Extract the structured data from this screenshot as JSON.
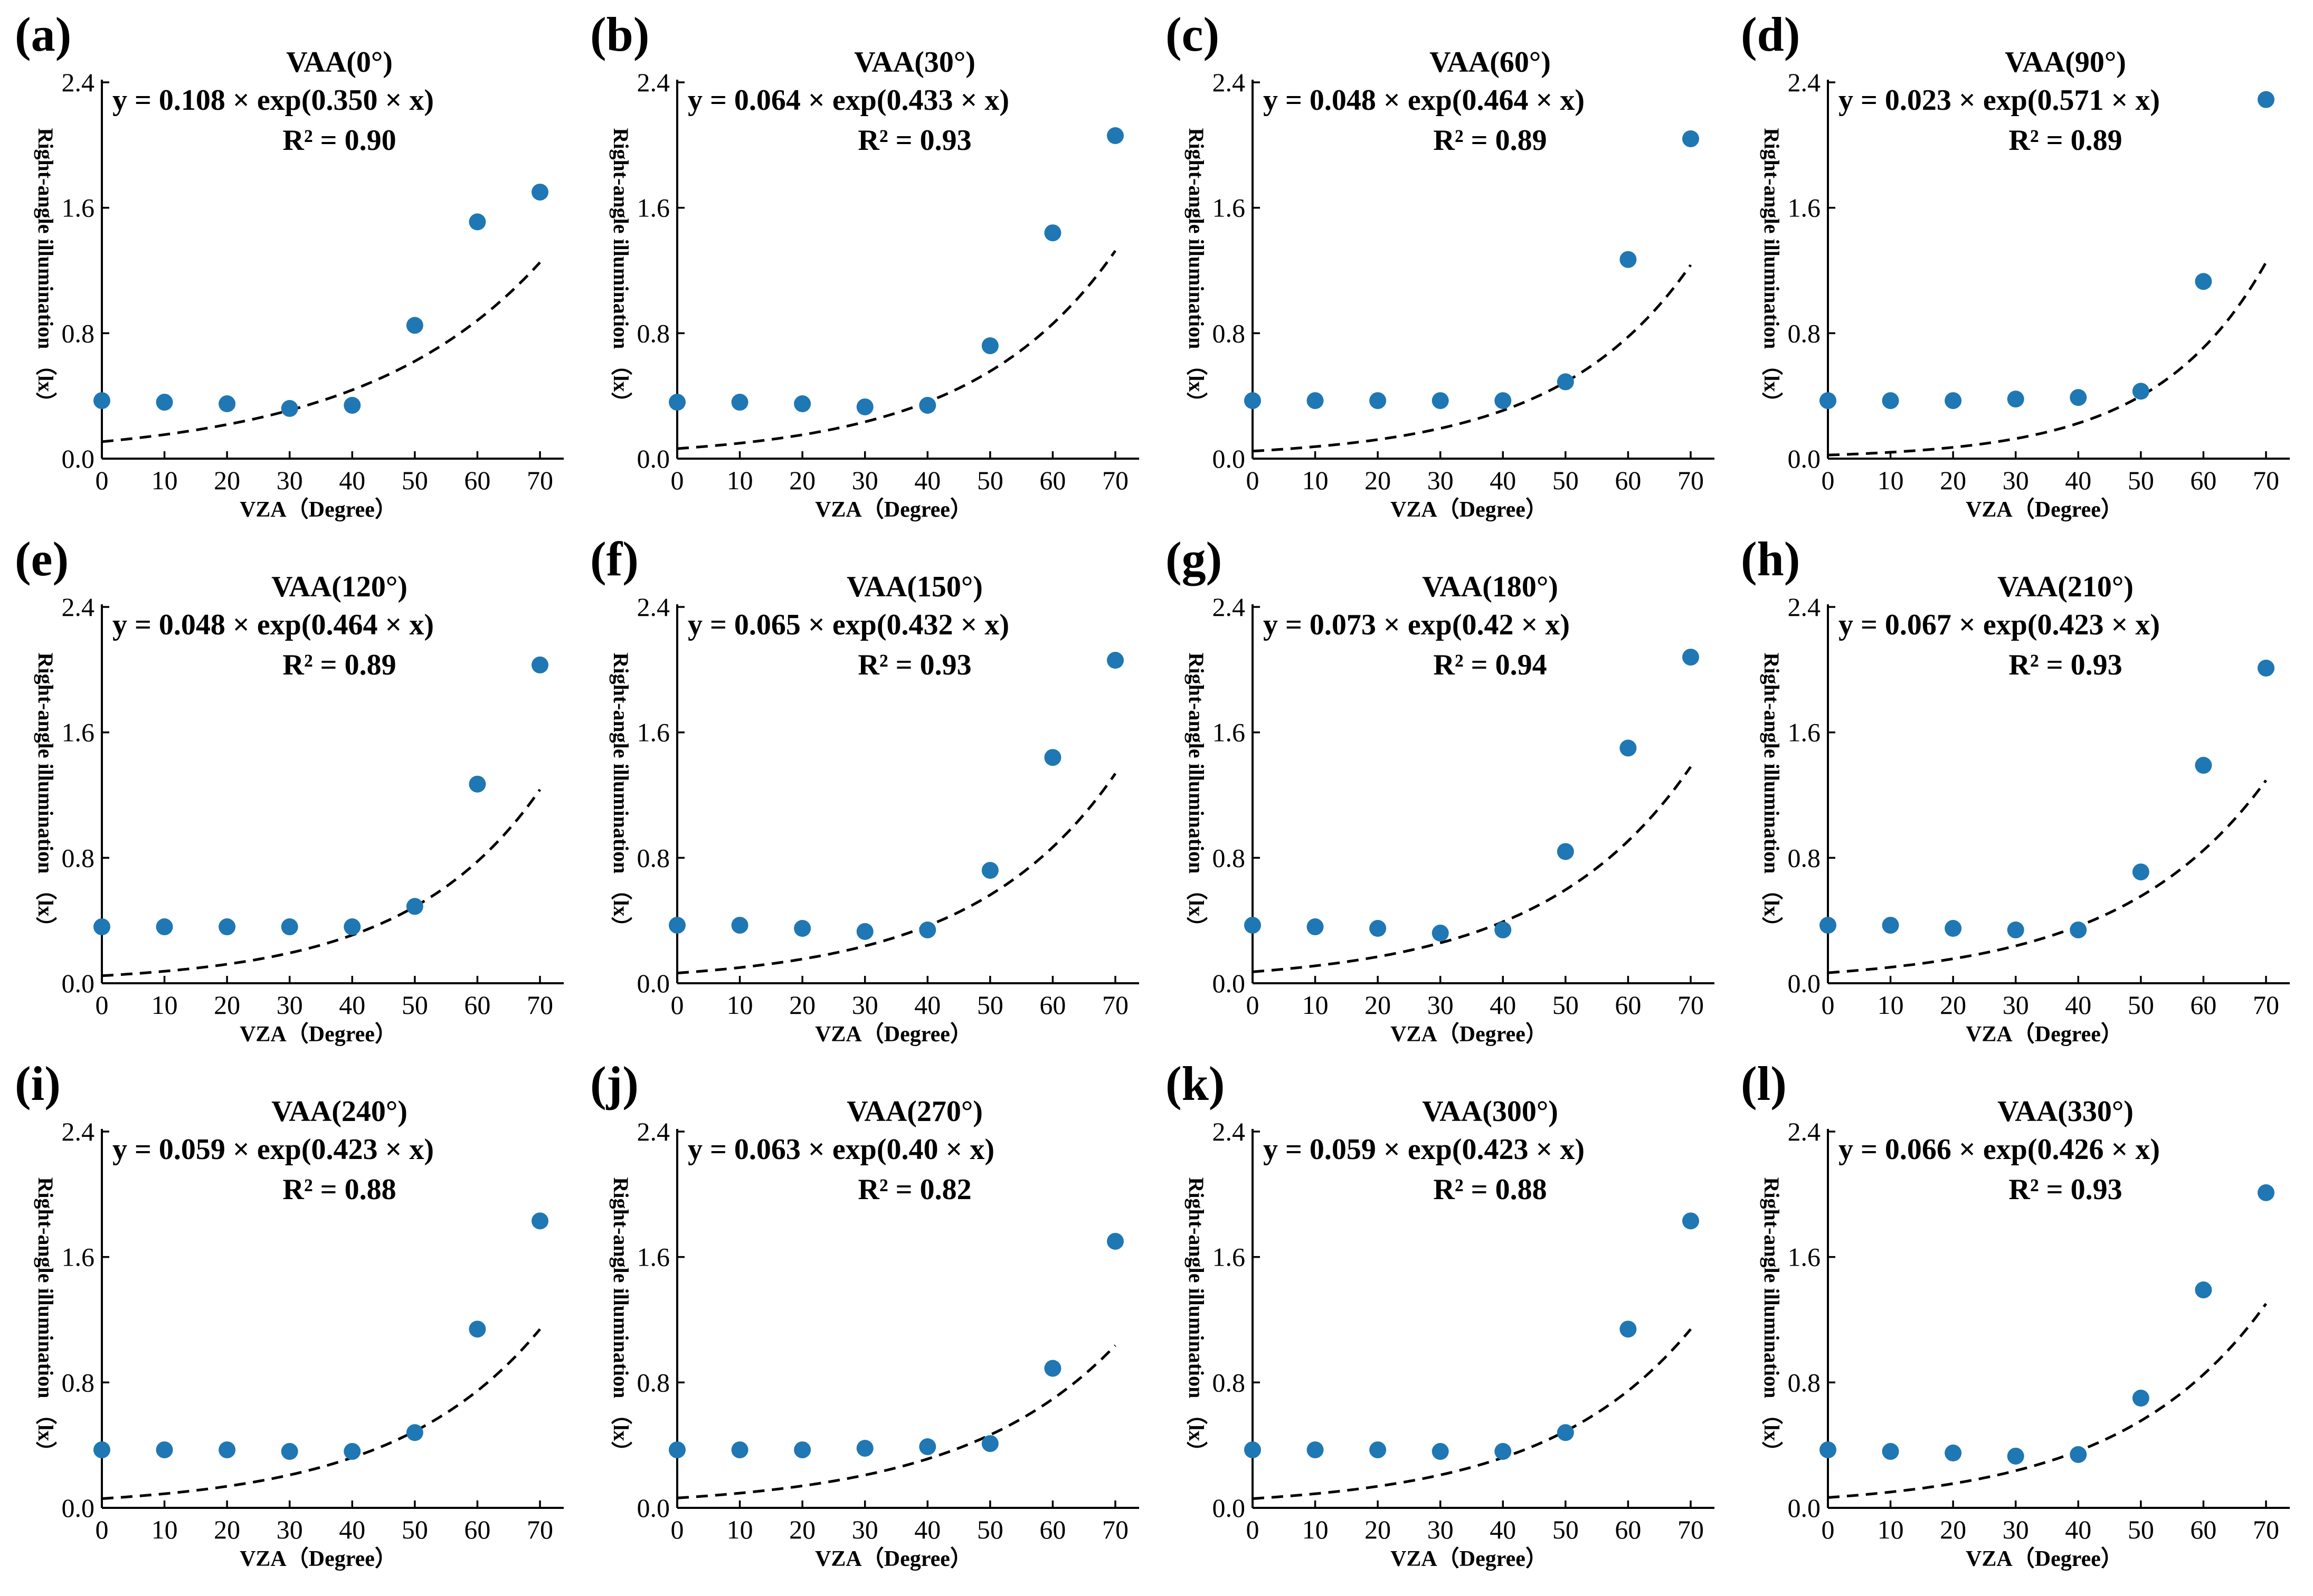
{
  "x_label": "VZA（Degree）",
  "y_label": "Right-angle illumination （lx）",
  "chart_data": [
    {
      "type": "scatter",
      "label": "(a)",
      "title": "VAA(0°)",
      "equation": "y = 0.108 × exp(0.350 × x)",
      "r2": "R² = 0.90",
      "a": 0.108,
      "b": 0.35,
      "x": [
        0,
        10,
        20,
        30,
        40,
        50,
        60,
        70
      ],
      "y": [
        0.37,
        0.36,
        0.35,
        0.32,
        0.34,
        0.85,
        1.51,
        1.7
      ],
      "xlim": [
        0,
        70
      ],
      "ylim": [
        0,
        2.4
      ],
      "xticks": [
        "0",
        "10",
        "20",
        "30",
        "40",
        "50",
        "60",
        "70"
      ],
      "yticks": [
        "0.0",
        "0.8",
        "1.6",
        "2.4"
      ]
    },
    {
      "type": "scatter",
      "label": "(b)",
      "title": "VAA(30°)",
      "equation": "y = 0.064 × exp(0.433 × x)",
      "r2": "R² = 0.93",
      "a": 0.064,
      "b": 0.433,
      "x": [
        0,
        10,
        20,
        30,
        40,
        50,
        60,
        70
      ],
      "y": [
        0.36,
        0.36,
        0.35,
        0.33,
        0.34,
        0.72,
        1.44,
        2.06
      ],
      "xlim": [
        0,
        70
      ],
      "ylim": [
        0,
        2.4
      ],
      "xticks": [
        "0",
        "10",
        "20",
        "30",
        "40",
        "50",
        "60",
        "70"
      ],
      "yticks": [
        "0.0",
        "0.8",
        "1.6",
        "2.4"
      ]
    },
    {
      "type": "scatter",
      "label": "(c)",
      "title": "VAA(60°)",
      "equation": "y = 0.048 × exp(0.464 × x)",
      "r2": "R² = 0.89",
      "a": 0.048,
      "b": 0.464,
      "x": [
        0,
        10,
        20,
        30,
        40,
        50,
        60,
        70
      ],
      "y": [
        0.37,
        0.37,
        0.37,
        0.37,
        0.37,
        0.49,
        1.27,
        2.04
      ],
      "xlim": [
        0,
        70
      ],
      "ylim": [
        0,
        2.4
      ],
      "xticks": [
        "0",
        "10",
        "20",
        "30",
        "40",
        "50",
        "60",
        "70"
      ],
      "yticks": [
        "0.0",
        "0.8",
        "1.6",
        "2.4"
      ]
    },
    {
      "type": "scatter",
      "label": "(d)",
      "title": "VAA(90°)",
      "equation": "y = 0.023 × exp(0.571 × x)",
      "r2": "R² = 0.89",
      "a": 0.023,
      "b": 0.571,
      "x": [
        0,
        10,
        20,
        30,
        40,
        50,
        60,
        70
      ],
      "y": [
        0.37,
        0.37,
        0.37,
        0.38,
        0.39,
        0.43,
        1.13,
        2.29
      ],
      "xlim": [
        0,
        70
      ],
      "ylim": [
        0,
        2.4
      ],
      "xticks": [
        "0",
        "10",
        "20",
        "30",
        "40",
        "50",
        "60",
        "70"
      ],
      "yticks": [
        "0.0",
        "0.8",
        "1.6",
        "2.4"
      ]
    },
    {
      "type": "scatter",
      "label": "(e)",
      "title": "VAA(120°)",
      "equation": "y = 0.048 × exp(0.464 × x)",
      "r2": "R² = 0.89",
      "a": 0.048,
      "b": 0.464,
      "x": [
        0,
        10,
        20,
        30,
        40,
        50,
        60,
        70
      ],
      "y": [
        0.36,
        0.36,
        0.36,
        0.36,
        0.36,
        0.49,
        1.27,
        2.03
      ],
      "xlim": [
        0,
        70
      ],
      "ylim": [
        0,
        2.4
      ],
      "xticks": [
        "0",
        "10",
        "20",
        "30",
        "40",
        "50",
        "60",
        "70"
      ],
      "yticks": [
        "0.0",
        "0.8",
        "1.6",
        "2.4"
      ]
    },
    {
      "type": "scatter",
      "label": "(f)",
      "title": "VAA(150°)",
      "equation": "y = 0.065 × exp(0.432 × x)",
      "r2": "R² = 0.93",
      "a": 0.065,
      "b": 0.432,
      "x": [
        0,
        10,
        20,
        30,
        40,
        50,
        60,
        70
      ],
      "y": [
        0.37,
        0.37,
        0.35,
        0.33,
        0.34,
        0.72,
        1.44,
        2.06
      ],
      "xlim": [
        0,
        70
      ],
      "ylim": [
        0,
        2.4
      ],
      "xticks": [
        "0",
        "10",
        "20",
        "30",
        "40",
        "50",
        "60",
        "70"
      ],
      "yticks": [
        "0.0",
        "0.8",
        "1.6",
        "2.4"
      ]
    },
    {
      "type": "scatter",
      "label": "(g)",
      "title": "VAA(180°)",
      "equation": "y = 0.073 × exp(0.42 × x)",
      "r2": "R² = 0.94",
      "a": 0.073,
      "b": 0.42,
      "x": [
        0,
        10,
        20,
        30,
        40,
        50,
        60,
        70
      ],
      "y": [
        0.37,
        0.36,
        0.35,
        0.32,
        0.34,
        0.84,
        1.5,
        2.08
      ],
      "xlim": [
        0,
        70
      ],
      "ylim": [
        0,
        2.4
      ],
      "xticks": [
        "0",
        "10",
        "20",
        "30",
        "40",
        "50",
        "60",
        "70"
      ],
      "yticks": [
        "0.0",
        "0.8",
        "1.6",
        "2.4"
      ]
    },
    {
      "type": "scatter",
      "label": "(h)",
      "title": "VAA(210°)",
      "equation": "y = 0.067 × exp(0.423 × x)",
      "r2": "R² = 0.93",
      "a": 0.067,
      "b": 0.423,
      "x": [
        0,
        10,
        20,
        30,
        40,
        50,
        60,
        70
      ],
      "y": [
        0.37,
        0.37,
        0.35,
        0.34,
        0.34,
        0.71,
        1.39,
        2.01
      ],
      "xlim": [
        0,
        70
      ],
      "ylim": [
        0,
        2.4
      ],
      "xticks": [
        "0",
        "10",
        "20",
        "30",
        "40",
        "50",
        "60",
        "70"
      ],
      "yticks": [
        "0.0",
        "0.8",
        "1.6",
        "2.4"
      ]
    },
    {
      "type": "scatter",
      "label": "(i)",
      "title": "VAA(240°)",
      "equation": "y = 0.059 × exp(0.423 × x)",
      "r2": "R² = 0.88",
      "a": 0.059,
      "b": 0.423,
      "x": [
        0,
        10,
        20,
        30,
        40,
        50,
        60,
        70
      ],
      "y": [
        0.37,
        0.37,
        0.37,
        0.36,
        0.36,
        0.48,
        1.14,
        1.83
      ],
      "xlim": [
        0,
        70
      ],
      "ylim": [
        0,
        2.4
      ],
      "xticks": [
        "0",
        "10",
        "20",
        "30",
        "40",
        "50",
        "60",
        "70"
      ],
      "yticks": [
        "0.0",
        "0.8",
        "1.6",
        "2.4"
      ]
    },
    {
      "type": "scatter",
      "label": "(j)",
      "title": "VAA(270°)",
      "equation": "y = 0.063 × exp(0.40 × x)",
      "r2": "R² = 0.82",
      "a": 0.063,
      "b": 0.4,
      "x": [
        0,
        10,
        20,
        30,
        40,
        50,
        60,
        70
      ],
      "y": [
        0.37,
        0.37,
        0.37,
        0.38,
        0.39,
        0.41,
        0.89,
        1.7
      ],
      "xlim": [
        0,
        70
      ],
      "ylim": [
        0,
        2.4
      ],
      "xticks": [
        "0",
        "10",
        "20",
        "30",
        "40",
        "50",
        "60",
        "70"
      ],
      "yticks": [
        "0.0",
        "0.8",
        "1.6",
        "2.4"
      ]
    },
    {
      "type": "scatter",
      "label": "(k)",
      "title": "VAA(300°)",
      "equation": "y = 0.059 × exp(0.423 × x)",
      "r2": "R² = 0.88",
      "a": 0.059,
      "b": 0.423,
      "x": [
        0,
        10,
        20,
        30,
        40,
        50,
        60,
        70
      ],
      "y": [
        0.37,
        0.37,
        0.37,
        0.36,
        0.36,
        0.48,
        1.14,
        1.83
      ],
      "xlim": [
        0,
        70
      ],
      "ylim": [
        0,
        2.4
      ],
      "xticks": [
        "0",
        "10",
        "20",
        "30",
        "40",
        "50",
        "60",
        "70"
      ],
      "yticks": [
        "0.0",
        "0.8",
        "1.6",
        "2.4"
      ]
    },
    {
      "type": "scatter",
      "label": "(l)",
      "title": "VAA(330°)",
      "equation": "y = 0.066 × exp(0.426 × x)",
      "r2": "R² = 0.93",
      "a": 0.066,
      "b": 0.426,
      "x": [
        0,
        10,
        20,
        30,
        40,
        50,
        60,
        70
      ],
      "y": [
        0.37,
        0.36,
        0.35,
        0.33,
        0.34,
        0.7,
        1.39,
        2.01
      ],
      "xlim": [
        0,
        70
      ],
      "ylim": [
        0,
        2.4
      ],
      "xticks": [
        "0",
        "10",
        "20",
        "30",
        "40",
        "50",
        "60",
        "70"
      ],
      "yticks": [
        "0.0",
        "0.8",
        "1.6",
        "2.4"
      ]
    }
  ],
  "colors": {
    "points": "#1f77b4",
    "axes": "#000000",
    "fit": "#000000"
  }
}
